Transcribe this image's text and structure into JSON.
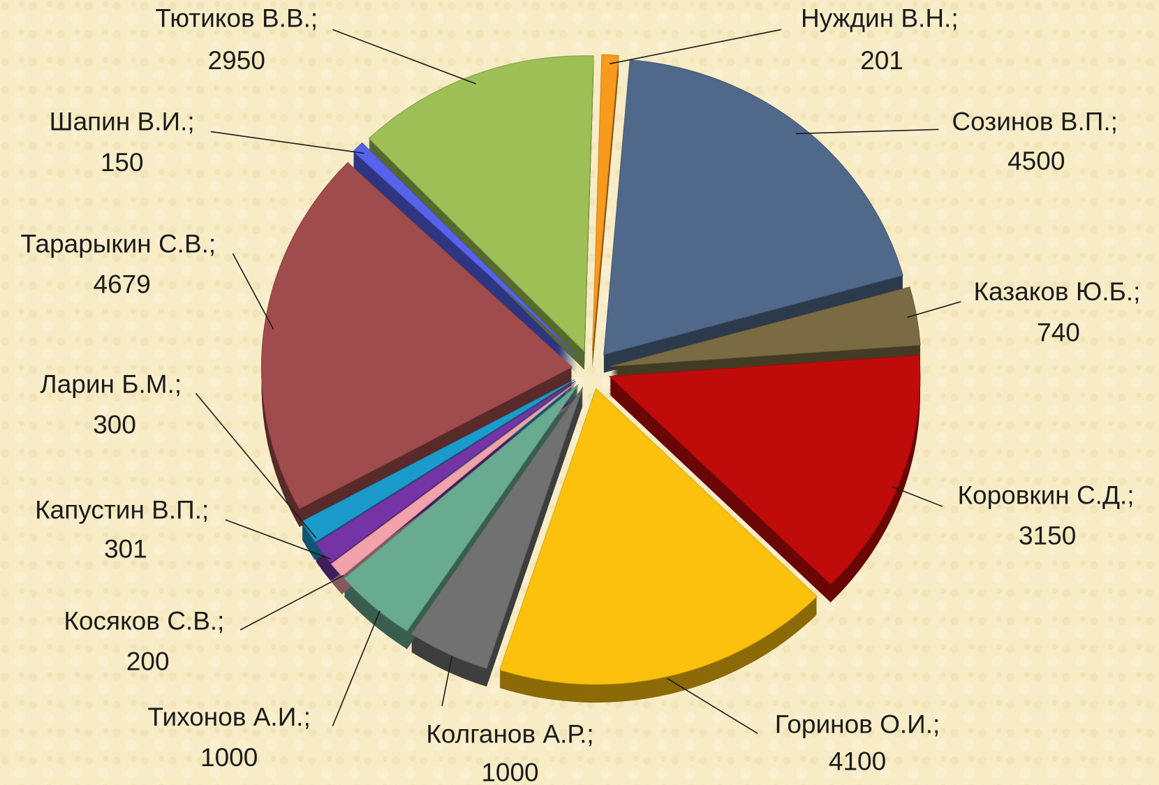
{
  "chart_data": {
    "type": "pie",
    "separator": ";",
    "categories": [
      "Нуждин В.Н.",
      "Созинов В.П.",
      "Казаков Ю.Б.",
      "Коровкин С.Д.",
      "Горинов О.И.",
      "Колганов А.Р.",
      "Тихонов А.И.",
      "Косяков С.В.",
      "Капустин В.П.",
      "Ларин Б.М.",
      "Тарарыкин С.В.",
      "Шапин В.И.",
      "Тютиков В.В."
    ],
    "values": [
      201,
      4500,
      740,
      3150,
      4100,
      1000,
      1000,
      200,
      301,
      300,
      4679,
      150,
      2950
    ],
    "colors": [
      "#f79a1e",
      "#50698a",
      "#7a6b42",
      "#c00b0b",
      "#fcc10c",
      "#717171",
      "#68ab90",
      "#f2a2aa",
      "#7434a6",
      "#1b9bcb",
      "#a04c4c",
      "#5663ea",
      "#9dbf55"
    ]
  }
}
